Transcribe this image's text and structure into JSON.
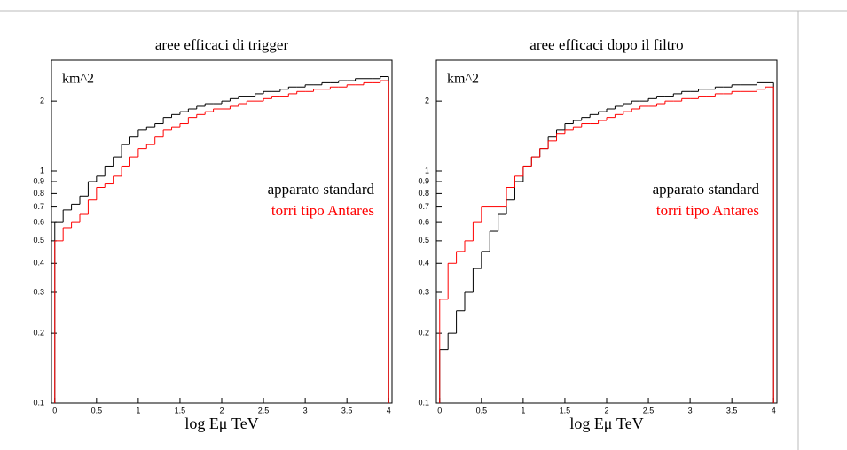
{
  "chart_data": [
    {
      "type": "histogram",
      "title": "aree efficaci di trigger",
      "annotation": "km^2",
      "x_label": "log Eμ TeV",
      "log_y": true,
      "xlim": [
        -0.04,
        4.04
      ],
      "ylim": [
        0.1,
        3
      ],
      "xticks": [
        0,
        0.5,
        1,
        1.5,
        2,
        2.5,
        3,
        3.5,
        4
      ],
      "yticks": [
        0.1,
        0.2,
        0.3,
        0.4,
        0.5,
        0.6,
        0.7,
        0.8,
        0.9,
        1,
        2
      ],
      "bins": [
        0,
        0.1,
        0.2,
        0.3,
        0.4,
        0.5,
        0.6,
        0.7,
        0.8,
        0.9,
        1,
        1.1,
        1.2,
        1.3,
        1.4,
        1.5,
        1.6,
        1.7,
        1.8,
        1.9,
        2,
        2.1,
        2.2,
        2.3,
        2.4,
        2.5,
        2.6,
        2.7,
        2.8,
        2.9,
        3,
        3.1,
        3.2,
        3.3,
        3.4,
        3.5,
        3.6,
        3.7,
        3.8,
        3.9,
        4
      ],
      "series": [
        {
          "name": "apparato standard",
          "color": "#000000",
          "values": [
            0.6,
            0.68,
            0.72,
            0.78,
            0.9,
            0.95,
            1.05,
            1.15,
            1.3,
            1.4,
            1.5,
            1.55,
            1.6,
            1.7,
            1.75,
            1.8,
            1.85,
            1.9,
            1.95,
            1.95,
            2.0,
            2.05,
            2.1,
            2.1,
            2.15,
            2.2,
            2.2,
            2.25,
            2.3,
            2.3,
            2.35,
            2.35,
            2.4,
            2.4,
            2.45,
            2.45,
            2.5,
            2.5,
            2.5,
            2.55
          ]
        },
        {
          "name": "torri tipo Antares",
          "color": "#ff0000",
          "values": [
            0.5,
            0.57,
            0.6,
            0.65,
            0.75,
            0.85,
            0.88,
            0.95,
            1.05,
            1.15,
            1.25,
            1.3,
            1.4,
            1.5,
            1.55,
            1.6,
            1.7,
            1.75,
            1.8,
            1.85,
            1.85,
            1.9,
            1.95,
            2.0,
            2.0,
            2.05,
            2.1,
            2.1,
            2.15,
            2.2,
            2.2,
            2.25,
            2.25,
            2.3,
            2.3,
            2.35,
            2.35,
            2.4,
            2.4,
            2.45
          ]
        }
      ]
    },
    {
      "type": "histogram",
      "title": "aree efficaci dopo il filtro",
      "annotation": "km^2",
      "x_label": "log Eμ TeV",
      "log_y": true,
      "xlim": [
        -0.04,
        4.04
      ],
      "ylim": [
        0.1,
        3
      ],
      "xticks": [
        0,
        0.5,
        1,
        1.5,
        2,
        2.5,
        3,
        3.5,
        4
      ],
      "yticks": [
        0.1,
        0.2,
        0.3,
        0.4,
        0.5,
        0.6,
        0.7,
        0.8,
        0.9,
        1,
        2
      ],
      "bins": [
        0,
        0.1,
        0.2,
        0.3,
        0.4,
        0.5,
        0.6,
        0.7,
        0.8,
        0.9,
        1,
        1.1,
        1.2,
        1.3,
        1.4,
        1.5,
        1.6,
        1.7,
        1.8,
        1.9,
        2,
        2.1,
        2.2,
        2.3,
        2.4,
        2.5,
        2.6,
        2.7,
        2.8,
        2.9,
        3,
        3.1,
        3.2,
        3.3,
        3.4,
        3.5,
        3.6,
        3.7,
        3.8,
        3.9,
        4
      ],
      "series": [
        {
          "name": "apparato standard",
          "color": "#000000",
          "values": [
            0.17,
            0.2,
            0.25,
            0.3,
            0.38,
            0.45,
            0.55,
            0.65,
            0.75,
            0.9,
            1.05,
            1.15,
            1.25,
            1.4,
            1.5,
            1.6,
            1.65,
            1.7,
            1.75,
            1.8,
            1.85,
            1.9,
            1.95,
            2.0,
            2.0,
            2.05,
            2.1,
            2.1,
            2.15,
            2.2,
            2.2,
            2.25,
            2.25,
            2.3,
            2.3,
            2.35,
            2.35,
            2.35,
            2.4,
            2.4
          ]
        },
        {
          "name": "torri tipo Antares",
          "color": "#ff0000",
          "values": [
            0.28,
            0.4,
            0.45,
            0.5,
            0.6,
            0.7,
            0.7,
            0.7,
            0.85,
            0.95,
            1.05,
            1.15,
            1.25,
            1.35,
            1.45,
            1.5,
            1.55,
            1.6,
            1.6,
            1.65,
            1.7,
            1.75,
            1.8,
            1.85,
            1.9,
            1.9,
            1.95,
            2.0,
            2.0,
            2.05,
            2.05,
            2.1,
            2.1,
            2.15,
            2.15,
            2.2,
            2.2,
            2.2,
            2.25,
            2.3
          ]
        }
      ]
    }
  ]
}
